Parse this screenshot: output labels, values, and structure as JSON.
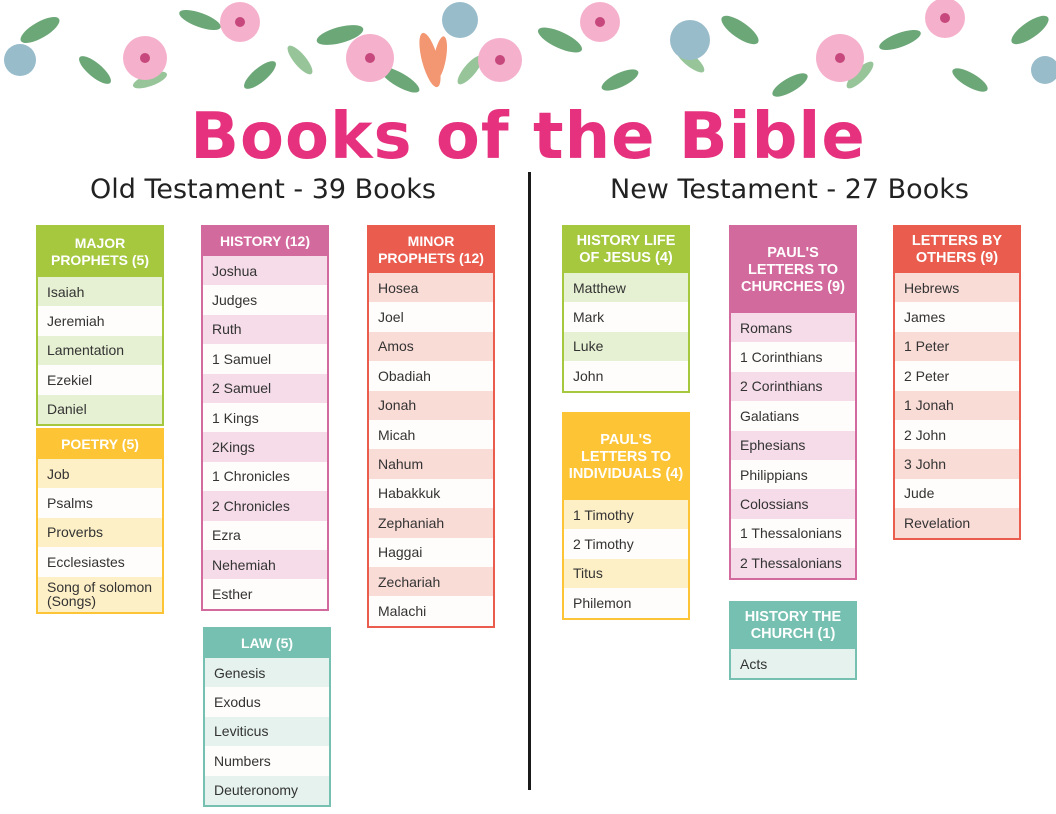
{
  "title": "Books of the Bible",
  "old_testament": {
    "heading": "Old Testament - 39 Books",
    "groups": [
      {
        "id": "major-prophets",
        "header": "MAJOR PROPHETS (5)",
        "color": "#a5c83f",
        "tint": "#e6f0d2",
        "books": [
          "Isaiah",
          "Jeremiah",
          "Lamentation",
          "Ezekiel",
          "Daniel"
        ]
      },
      {
        "id": "poetry",
        "header": "POETRY (5)",
        "color": "#fdc435",
        "tint": "#fdefc6",
        "books": [
          "Job",
          "Psalms",
          "Proverbs",
          "Ecclesiastes",
          "Song of solomon (Songs)"
        ]
      },
      {
        "id": "history",
        "header": "HISTORY (12)",
        "color": "#d36a9d",
        "tint": "#f5dce8",
        "books": [
          "Joshua",
          "Judges",
          "Ruth",
          "1 Samuel",
          "2 Samuel",
          "1 Kings",
          "2Kings",
          "1 Chronicles",
          "2 Chronicles",
          "Ezra",
          "Nehemiah",
          "Esther"
        ]
      },
      {
        "id": "law",
        "header": "LAW (5)",
        "color": "#76c0b1",
        "tint": "#e5f2ee",
        "books": [
          "Genesis",
          "Exodus",
          "Leviticus",
          "Numbers",
          "Deuteronomy"
        ]
      },
      {
        "id": "minor-prophets",
        "header": "MINOR PROPHETS (12)",
        "color": "#e95c4e",
        "tint": "#fadcd7",
        "books": [
          "Hosea",
          "Joel",
          "Amos",
          "Obadiah",
          "Jonah",
          "Micah",
          "Nahum",
          "Habakkuk",
          "Zephaniah",
          "Haggai",
          "Zechariah",
          "Malachi"
        ]
      }
    ]
  },
  "new_testament": {
    "heading": "New Testament - 27 Books",
    "groups": [
      {
        "id": "history-life-of-jesus",
        "header": "HISTORY LIFE OF JESUS (4)",
        "color": "#a5c83f",
        "tint": "#e6f0d2",
        "books": [
          "Matthew",
          "Mark",
          "Luke",
          "John"
        ]
      },
      {
        "id": "pauls-letters-to-individuals",
        "header": "PAUL'S LETTERS TO INDIVIDUALS (4)",
        "color": "#fdc435",
        "tint": "#fdefc6",
        "books": [
          "1 Timothy",
          "2 Timothy",
          "Titus",
          "Philemon"
        ]
      },
      {
        "id": "pauls-letters-to-churches",
        "header": "PAUL'S LETTERS TO CHURCHES (9)",
        "color": "#d36a9d",
        "tint": "#f5dce8",
        "books": [
          "Romans",
          "1 Corinthians",
          "2 Corinthians",
          "Galatians",
          "Ephesians",
          "Philippians",
          "Colossians",
          "1 Thessalonians",
          "2 Thessalonians"
        ]
      },
      {
        "id": "history-the-church",
        "header": "HISTORY THE CHURCH (1)",
        "color": "#76c0b1",
        "tint": "#e5f2ee",
        "books": [
          "Acts"
        ]
      },
      {
        "id": "letters-by-others",
        "header": "LETTERS BY OTHERS (9)",
        "color": "#e95c4e",
        "tint": "#fadcd7",
        "books": [
          "Hebrews",
          "James",
          "1 Peter",
          "2 Peter",
          "1 Jonah",
          "2 John",
          "3 John",
          "Jude",
          "Revelation"
        ]
      }
    ]
  }
}
